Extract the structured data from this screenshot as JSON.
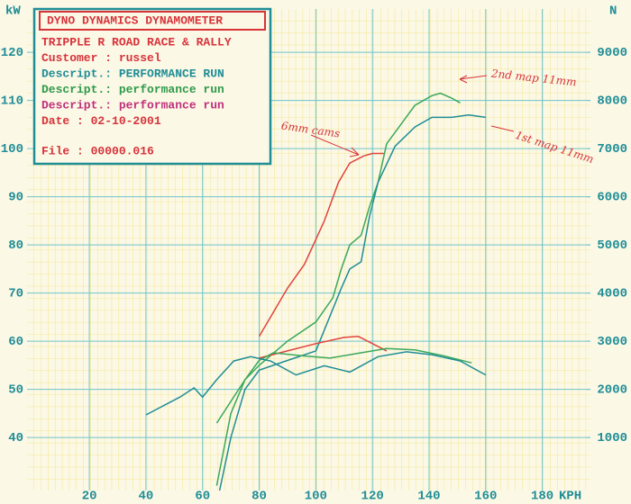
{
  "chart_data": {
    "type": "line",
    "y_label": "kW",
    "y2_label": "N",
    "x_label": "KPH",
    "legend_title": "DYNO DYNAMICS DYNAMOMETER",
    "legend_lines": [
      {
        "text": "TRIPPLE R ROAD RACE & RALLY",
        "color": "#d8333a"
      },
      {
        "text": "Customer : russel",
        "color": "#d8333a"
      },
      {
        "text": "Descript.: PERFORMANCE RUN",
        "color": "#1f8d96"
      },
      {
        "text": "Descript.: performance run",
        "color": "#2f9a4a"
      },
      {
        "text": "Descript.: performance run",
        "color": "#c0307a"
      },
      {
        "text": "Date     : 02-10-2001",
        "color": "#d8333a"
      },
      {
        "text": "File   : 00000.016",
        "color": "#d8333a"
      }
    ],
    "annotations": [
      "2nd map 11mm",
      "6mm cams",
      "1st map 11mm"
    ],
    "xlim": [
      -2,
      197
    ],
    "xticks": [
      20,
      40,
      60,
      80,
      100,
      120,
      140,
      160,
      180
    ],
    "ylim": [
      29,
      129
    ],
    "yticks": [
      40,
      50,
      60,
      70,
      80,
      90,
      100,
      110,
      120
    ],
    "y2lim": [
      -100,
      9900
    ],
    "y2ticks": [
      1000,
      2000,
      3000,
      4000,
      5000,
      6000,
      7000,
      8000,
      9000
    ],
    "grid": true,
    "series": [
      {
        "color": "#e0443c",
        "x": [
          80,
          84,
          90,
          96,
          103,
          108,
          112,
          117,
          120,
          124
        ],
        "values": [
          61,
          65,
          71,
          76,
          85,
          93,
          97,
          98.5,
          99,
          99
        ]
      },
      {
        "color": "#3aa85a",
        "x": [
          65,
          70,
          75,
          80,
          90,
          100,
          106,
          109,
          112,
          116,
          119,
          122,
          125,
          130,
          135,
          141,
          144,
          148,
          151
        ],
        "values": [
          30,
          45,
          52,
          55,
          60,
          64,
          69,
          75,
          80,
          82,
          88,
          93,
          101,
          105,
          109,
          111,
          111.5,
          110.5,
          109.5
        ]
      },
      {
        "color": "#1f8d96",
        "x": [
          66,
          70,
          75,
          80,
          90,
          100,
          109,
          112,
          116,
          119,
          122,
          128,
          135,
          141,
          148,
          154,
          160
        ],
        "values": [
          29,
          40,
          50,
          54,
          56,
          58,
          71,
          75,
          76.5,
          86,
          93,
          100.5,
          104.5,
          106.5,
          106.5,
          107,
          106.5
        ]
      },
      {
        "color": "#e0443c",
        "axis": "y2",
        "x": [
          80,
          90,
          100,
          110,
          115,
          120,
          125
        ],
        "values": [
          2650,
          2800,
          2950,
          3080,
          3100,
          2950,
          2800
        ]
      },
      {
        "color": "#3aa85a",
        "axis": "y2",
        "x": [
          65,
          75,
          80,
          85,
          95,
          105,
          115,
          125,
          135,
          145,
          155
        ],
        "values": [
          1300,
          2200,
          2600,
          2760,
          2700,
          2650,
          2750,
          2850,
          2820,
          2700,
          2550
        ]
      },
      {
        "color": "#1f8d96",
        "axis": "y2",
        "x": [
          40,
          52,
          57,
          60,
          65,
          71,
          77,
          84,
          93,
          103,
          112,
          122,
          132,
          141,
          151,
          160
        ],
        "values": [
          1470,
          1840,
          2030,
          1840,
          2200,
          2590,
          2680,
          2590,
          2300,
          2490,
          2360,
          2680,
          2780,
          2720,
          2590,
          2300
        ]
      }
    ]
  }
}
